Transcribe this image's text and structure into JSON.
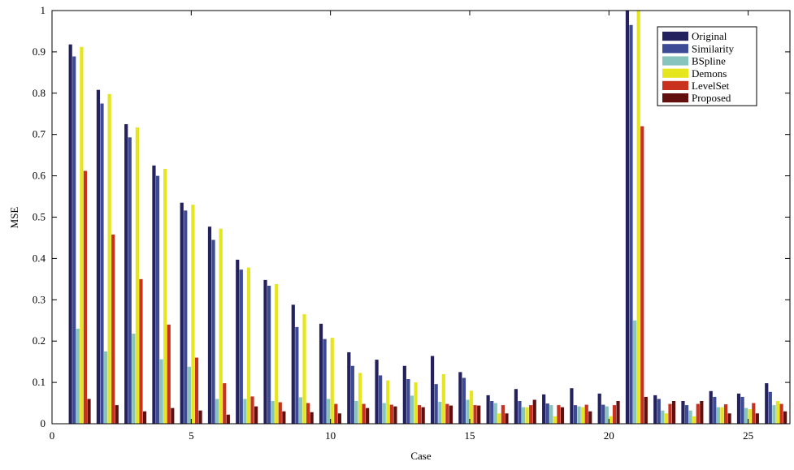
{
  "chart_data": {
    "type": "bar",
    "title": "",
    "xlabel": "Case",
    "ylabel": "MSE",
    "xlim": [
      0,
      26.5
    ],
    "ylim": [
      0,
      1
    ],
    "xticks": [
      0,
      5,
      10,
      15,
      20,
      25
    ],
    "xtick_labels": [
      "0",
      "5",
      "10",
      "15",
      "20",
      "25"
    ],
    "yticks": [
      0,
      0.1,
      0.2,
      0.3,
      0.4,
      0.5,
      0.6,
      0.7,
      0.8,
      0.9,
      1
    ],
    "ytick_labels": [
      "0",
      "0.1",
      "0.2",
      "0.3",
      "0.4",
      "0.5",
      "0.6",
      "0.7",
      "0.8",
      "0.9",
      "1"
    ],
    "grid": false,
    "legend_position": "top-right",
    "categories": [
      1,
      2,
      3,
      4,
      5,
      6,
      7,
      8,
      9,
      10,
      11,
      12,
      13,
      14,
      15,
      16,
      17,
      18,
      19,
      20,
      21,
      22,
      23,
      24,
      25,
      26
    ],
    "series": [
      {
        "name": "Original",
        "color": "#23215e",
        "values": [
          0.918,
          0.808,
          0.725,
          0.625,
          0.535,
          0.477,
          0.397,
          0.348,
          0.288,
          0.242,
          0.173,
          0.155,
          0.14,
          0.164,
          0.125,
          0.069,
          0.084,
          0.071,
          0.086,
          0.073,
          1.0,
          0.069,
          0.055,
          0.079,
          0.073,
          0.098
        ]
      },
      {
        "name": "Similarity",
        "color": "#3d4b96",
        "values": [
          0.889,
          0.775,
          0.693,
          0.6,
          0.516,
          0.445,
          0.373,
          0.334,
          0.234,
          0.205,
          0.14,
          0.117,
          0.108,
          0.096,
          0.111,
          0.055,
          0.055,
          0.049,
          0.045,
          0.046,
          0.965,
          0.06,
          0.045,
          0.065,
          0.065,
          0.077
        ]
      },
      {
        "name": "BSpline",
        "color": "#87c4be",
        "values": [
          0.23,
          0.175,
          0.218,
          0.156,
          0.138,
          0.06,
          0.06,
          0.055,
          0.064,
          0.06,
          0.055,
          0.05,
          0.068,
          0.053,
          0.058,
          0.05,
          0.04,
          0.045,
          0.042,
          0.042,
          0.25,
          0.032,
          0.032,
          0.04,
          0.038,
          0.045
        ]
      },
      {
        "name": "Demons",
        "color": "#e6e61e",
        "values": [
          0.912,
          0.798,
          0.717,
          0.617,
          0.53,
          0.472,
          0.378,
          0.338,
          0.265,
          0.208,
          0.123,
          0.105,
          0.1,
          0.12,
          0.08,
          0.025,
          0.04,
          0.018,
          0.04,
          0.018,
          1.0,
          0.025,
          0.018,
          0.04,
          0.035,
          0.055
        ]
      },
      {
        "name": "LevelSet",
        "color": "#c8321e",
        "values": [
          0.612,
          0.458,
          0.35,
          0.24,
          0.16,
          0.098,
          0.066,
          0.052,
          0.05,
          0.048,
          0.048,
          0.046,
          0.045,
          0.048,
          0.045,
          0.045,
          0.045,
          0.045,
          0.046,
          0.045,
          0.72,
          0.048,
          0.048,
          0.047,
          0.05,
          0.048
        ]
      },
      {
        "name": "Proposed",
        "color": "#640f0f",
        "values": [
          0.06,
          0.045,
          0.03,
          0.038,
          0.032,
          0.022,
          0.042,
          0.03,
          0.028,
          0.025,
          0.038,
          0.042,
          0.04,
          0.044,
          0.044,
          0.025,
          0.058,
          0.04,
          0.03,
          0.055,
          0.065,
          0.055,
          0.055,
          0.025,
          0.025,
          0.03
        ]
      }
    ]
  }
}
